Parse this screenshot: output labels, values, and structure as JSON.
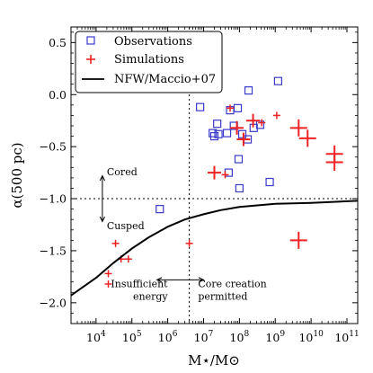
{
  "chart_data": {
    "type": "scatter",
    "x_scale": "log",
    "xlim": [
      2000,
      200000000000
    ],
    "ylim": [
      -2.2,
      0.65
    ],
    "xlabel": "M⋆/M⊙",
    "ylabel": "α(500 pc)",
    "x_tick_labels": [
      {
        "value": 10000,
        "base": "10",
        "exp": "4"
      },
      {
        "value": 100000,
        "base": "10",
        "exp": "5"
      },
      {
        "value": 1000000,
        "base": "10",
        "exp": "6"
      },
      {
        "value": 10000000,
        "base": "10",
        "exp": "7"
      },
      {
        "value": 100000000,
        "base": "10",
        "exp": "8"
      },
      {
        "value": 1000000000,
        "base": "10",
        "exp": "9"
      },
      {
        "value": 10000000000,
        "base": "10",
        "exp": "10"
      },
      {
        "value": 100000000000,
        "base": "10",
        "exp": "11"
      }
    ],
    "y_ticks": [
      -2.0,
      -1.5,
      -1.0,
      -0.5,
      0.0,
      0.5
    ],
    "y_tick_labels": [
      "−2.0",
      "−1.5",
      "−1.0",
      "−0.5",
      "0.0",
      "0.5"
    ],
    "legend": {
      "position": "top-left",
      "entries": [
        {
          "label": "Observations",
          "marker": "open-square",
          "color": "#3a3acc"
        },
        {
          "label": "Simulations",
          "marker": "plus",
          "color": "#ee2222"
        },
        {
          "label": "NFW/Maccio+07",
          "marker": "line",
          "color": "#000000"
        }
      ]
    },
    "series": [
      {
        "name": "Observations",
        "marker": "open-square",
        "color": "#3a3acc",
        "points": [
          {
            "x": 600000,
            "y": -1.1
          },
          {
            "x": 8000000,
            "y": -0.12
          },
          {
            "x": 18000000,
            "y": -0.37
          },
          {
            "x": 20000000,
            "y": -0.4
          },
          {
            "x": 24000000,
            "y": -0.28
          },
          {
            "x": 26000000,
            "y": -0.38
          },
          {
            "x": 45000000,
            "y": -0.37
          },
          {
            "x": 55000000,
            "y": -0.15
          },
          {
            "x": 70000000,
            "y": -0.3
          },
          {
            "x": 50000000,
            "y": -0.75
          },
          {
            "x": 90000000,
            "y": -0.13
          },
          {
            "x": 95000000,
            "y": -0.62
          },
          {
            "x": 100000000,
            "y": -0.9
          },
          {
            "x": 120000000,
            "y": -0.38
          },
          {
            "x": 170000000,
            "y": -0.43
          },
          {
            "x": 180000000,
            "y": 0.04
          },
          {
            "x": 250000000,
            "y": -0.32
          },
          {
            "x": 380000000,
            "y": -0.29
          },
          {
            "x": 700000000,
            "y": -0.84
          },
          {
            "x": 1200000000,
            "y": 0.13
          }
        ]
      },
      {
        "name": "Simulations",
        "marker": "plus",
        "color": "#ee2222",
        "points": [
          {
            "x": 22000,
            "y": -1.72,
            "size": "small"
          },
          {
            "x": 22000,
            "y": -1.82,
            "size": "small"
          },
          {
            "x": 35000,
            "y": -1.43,
            "size": "small"
          },
          {
            "x": 50000,
            "y": -1.58,
            "size": "small"
          },
          {
            "x": 80000,
            "y": -1.58,
            "size": "small"
          },
          {
            "x": 4000000,
            "y": -1.43,
            "size": "small"
          },
          {
            "x": 55000000,
            "y": -0.13,
            "size": "small"
          },
          {
            "x": 40000000,
            "y": -0.77,
            "size": "small"
          },
          {
            "x": 1100000000,
            "y": -0.2,
            "size": "small"
          },
          {
            "x": 420000000,
            "y": -0.27,
            "size": "small"
          },
          {
            "x": 20000000,
            "y": -0.75,
            "size": "medium"
          },
          {
            "x": 85000000,
            "y": -0.32,
            "size": "medium"
          },
          {
            "x": 130000000,
            "y": -0.43,
            "size": "medium"
          },
          {
            "x": 240000000,
            "y": -0.25,
            "size": "medium"
          },
          {
            "x": 4500000000,
            "y": -0.32,
            "size": "large"
          },
          {
            "x": 8000000000,
            "y": -0.42,
            "size": "large"
          },
          {
            "x": 4500000000,
            "y": -1.4,
            "size": "large"
          },
          {
            "x": 45000000000,
            "y": -0.57,
            "size": "large"
          },
          {
            "x": 45000000000,
            "y": -0.65,
            "size": "large"
          }
        ]
      },
      {
        "name": "NFW/Maccio+07",
        "type": "line",
        "color": "#000000",
        "points": [
          {
            "x": 2000,
            "y": -1.93
          },
          {
            "x": 10000,
            "y": -1.76
          },
          {
            "x": 30000,
            "y": -1.62
          },
          {
            "x": 100000,
            "y": -1.48
          },
          {
            "x": 300000,
            "y": -1.37
          },
          {
            "x": 1000000,
            "y": -1.27
          },
          {
            "x": 3000000,
            "y": -1.2
          },
          {
            "x": 10000000,
            "y": -1.15
          },
          {
            "x": 30000000,
            "y": -1.11
          },
          {
            "x": 100000000,
            "y": -1.08
          },
          {
            "x": 1000000000,
            "y": -1.05
          },
          {
            "x": 10000000000,
            "y": -1.04
          },
          {
            "x": 200000000000,
            "y": -1.02
          }
        ]
      }
    ],
    "reference_lines": [
      {
        "orientation": "horizontal",
        "y": -1.0,
        "style": "dotted"
      },
      {
        "orientation": "vertical",
        "x": 4000000,
        "style": "dotted"
      }
    ],
    "annotations": [
      {
        "text": "Cored",
        "x": 15000,
        "y": -0.74
      },
      {
        "text": "Cusped",
        "x": 15000,
        "y": -1.26
      },
      {
        "lines": [
          "Insufficient",
          "energy"
        ],
        "x": 1000000,
        "y": -1.85,
        "anchor": "end"
      },
      {
        "lines": [
          "Core creation",
          "permitted"
        ],
        "x": 7000000,
        "y": -1.85,
        "anchor": "start"
      }
    ],
    "arrows": [
      {
        "from": {
          "x": 15000,
          "y": -0.78
        },
        "to": {
          "x": 15000,
          "y": -1.22
        },
        "heads": "both"
      },
      {
        "from": {
          "x": 500000,
          "y": -1.78
        },
        "to": {
          "x": 10000000,
          "y": -1.78
        },
        "heads": "both"
      }
    ]
  }
}
